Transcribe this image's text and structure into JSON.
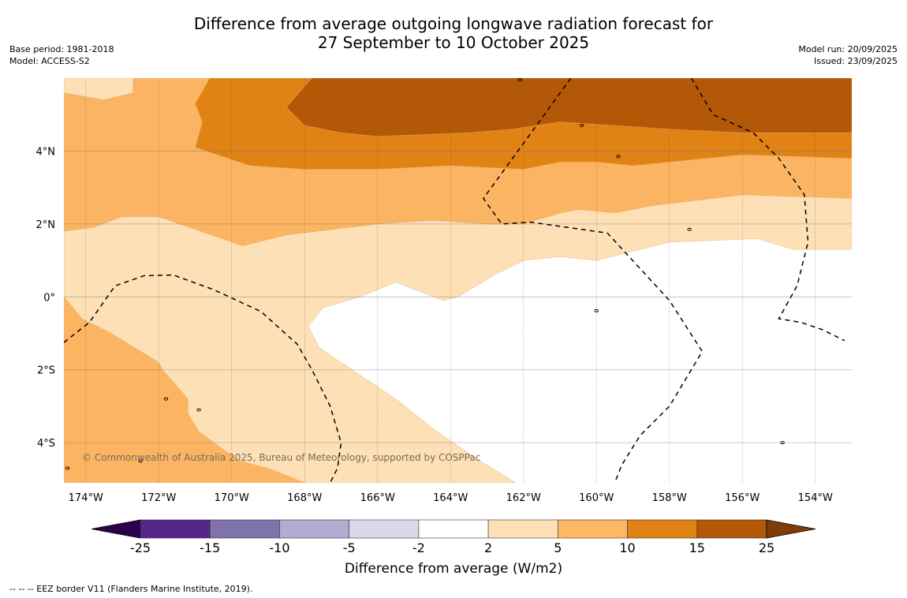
{
  "header": {
    "title_line1": "Difference from average outgoing longwave radiation forecast for",
    "title_line2": "27 September to 10 October 2025",
    "base_period": "Base period: 1981-2018",
    "model": "Model: ACCESS-S2",
    "model_run": "Model run: 20/09/2025",
    "issued": "Issued: 23/09/2025"
  },
  "map": {
    "extent": {
      "lon_min": -174.6,
      "lon_max": -153.0,
      "lat_min": -5.1,
      "lat_max": 6.0
    },
    "lon_ticks": [
      {
        "value": -174,
        "label": "174°W"
      },
      {
        "value": -172,
        "label": "172°W"
      },
      {
        "value": -170,
        "label": "170°W"
      },
      {
        "value": -168,
        "label": "168°W"
      },
      {
        "value": -166,
        "label": "166°W"
      },
      {
        "value": -164,
        "label": "164°W"
      },
      {
        "value": -162,
        "label": "162°W"
      },
      {
        "value": -160,
        "label": "160°W"
      },
      {
        "value": -158,
        "label": "158°W"
      },
      {
        "value": -156,
        "label": "156°W"
      },
      {
        "value": -154,
        "label": "154°W"
      }
    ],
    "lat_ticks": [
      {
        "value": 4,
        "label": "4°N"
      },
      {
        "value": 2,
        "label": "2°N"
      },
      {
        "value": 0,
        "label": "0°"
      },
      {
        "value": -2,
        "label": "2°S"
      },
      {
        "value": -4,
        "label": "4°S"
      }
    ],
    "background_color": "#ffffff",
    "contour_fills": [
      {
        "band": "2 to 5",
        "color": "#fde0b6",
        "polygons": [
          [
            [
              -174.6,
              6.0
            ],
            [
              -172.7,
              6.0
            ],
            [
              -172.7,
              5.6
            ],
            [
              -173.5,
              5.4
            ],
            [
              -174.6,
              5.6
            ]
          ],
          [
            [
              -174.6,
              1.8
            ],
            [
              -173.8,
              1.9
            ],
            [
              -173.0,
              2.2
            ],
            [
              -172.0,
              2.2
            ],
            [
              -169.7,
              1.4
            ],
            [
              -168.5,
              1.7
            ],
            [
              -166.0,
              2.0
            ],
            [
              -164.5,
              2.1
            ],
            [
              -163.0,
              2.0
            ],
            [
              -162.0,
              2.0
            ],
            [
              -161.0,
              2.3
            ],
            [
              -160.5,
              2.4
            ],
            [
              -159.5,
              2.3
            ],
            [
              -158.5,
              2.5
            ],
            [
              -156.0,
              2.8
            ],
            [
              -153.0,
              2.7
            ],
            [
              -153.0,
              1.3
            ],
            [
              -154.6,
              1.3
            ],
            [
              -155.6,
              1.6
            ],
            [
              -158.0,
              1.5
            ],
            [
              -160.0,
              1.0
            ],
            [
              -161.0,
              1.1
            ],
            [
              -162.0,
              1.0
            ],
            [
              -162.8,
              0.6
            ],
            [
              -163.8,
              0.0
            ],
            [
              -164.2,
              -0.1
            ],
            [
              -165.5,
              0.4
            ],
            [
              -166.5,
              0.0
            ],
            [
              -167.5,
              -0.3
            ],
            [
              -167.9,
              -0.8
            ],
            [
              -167.6,
              -1.4
            ],
            [
              -167.0,
              -1.8
            ],
            [
              -165.5,
              -2.8
            ],
            [
              -164.5,
              -3.6
            ],
            [
              -163.2,
              -4.5
            ],
            [
              -162.2,
              -5.1
            ],
            [
              -168.0,
              -5.1
            ],
            [
              -169.0,
              -4.7
            ],
            [
              -169.8,
              -4.5
            ],
            [
              -170.9,
              -3.7
            ],
            [
              -171.2,
              -3.2
            ],
            [
              -171.2,
              -2.8
            ],
            [
              -171.9,
              -2.0
            ],
            [
              -172.0,
              -1.8
            ],
            [
              -173.3,
              -1.0
            ],
            [
              -174.1,
              -0.6
            ],
            [
              -174.6,
              0.0
            ]
          ]
        ]
      },
      {
        "band": "5 to 10",
        "color": "#fbb462",
        "polygons": [
          [
            [
              -172.7,
              6.0
            ],
            [
              -170.6,
              6.0
            ],
            [
              -171.0,
              5.3
            ],
            [
              -170.8,
              4.8
            ],
            [
              -171.0,
              4.1
            ],
            [
              -169.5,
              3.6
            ],
            [
              -168.0,
              3.5
            ],
            [
              -166.0,
              3.5
            ],
            [
              -164.0,
              3.6
            ],
            [
              -162.0,
              3.5
            ],
            [
              -161.0,
              3.7
            ],
            [
              -160.0,
              3.7
            ],
            [
              -159.0,
              3.6
            ],
            [
              -156.0,
              3.9
            ],
            [
              -153.0,
              3.8
            ],
            [
              -153.0,
              2.7
            ],
            [
              -156.0,
              2.8
            ],
            [
              -158.5,
              2.5
            ],
            [
              -159.5,
              2.3
            ],
            [
              -160.5,
              2.4
            ],
            [
              -161.0,
              2.3
            ],
            [
              -162.0,
              2.0
            ],
            [
              -163.0,
              2.0
            ],
            [
              -164.5,
              2.1
            ],
            [
              -166.0,
              2.0
            ],
            [
              -168.5,
              1.7
            ],
            [
              -169.7,
              1.4
            ],
            [
              -172.0,
              2.2
            ],
            [
              -173.0,
              2.2
            ],
            [
              -173.8,
              1.9
            ],
            [
              -174.6,
              1.8
            ],
            [
              -174.6,
              5.6
            ],
            [
              -173.5,
              5.4
            ],
            [
              -172.7,
              5.6
            ]
          ],
          [
            [
              -174.6,
              0.0
            ],
            [
              -174.1,
              -0.6
            ],
            [
              -173.3,
              -1.0
            ],
            [
              -172.0,
              -1.8
            ],
            [
              -171.9,
              -2.0
            ],
            [
              -171.2,
              -2.8
            ],
            [
              -171.2,
              -3.2
            ],
            [
              -170.9,
              -3.7
            ],
            [
              -169.8,
              -4.5
            ],
            [
              -169.0,
              -4.7
            ],
            [
              -168.0,
              -5.1
            ],
            [
              -174.6,
              -5.1
            ]
          ]
        ]
      },
      {
        "band": "10 to 15",
        "color": "#e08214",
        "polygons": [
          [
            [
              -170.6,
              6.0
            ],
            [
              -167.8,
              6.0
            ],
            [
              -168.5,
              5.2
            ],
            [
              -168.0,
              4.7
            ],
            [
              -167.0,
              4.5
            ],
            [
              -166.0,
              4.4
            ],
            [
              -163.5,
              4.5
            ],
            [
              -162.3,
              4.6
            ],
            [
              -161.0,
              4.8
            ],
            [
              -159.5,
              4.7
            ],
            [
              -158.0,
              4.6
            ],
            [
              -156.0,
              4.5
            ],
            [
              -153.0,
              4.5
            ],
            [
              -153.0,
              3.8
            ],
            [
              -156.0,
              3.9
            ],
            [
              -159.0,
              3.6
            ],
            [
              -160.0,
              3.7
            ],
            [
              -161.0,
              3.7
            ],
            [
              -162.0,
              3.5
            ],
            [
              -164.0,
              3.6
            ],
            [
              -166.0,
              3.5
            ],
            [
              -168.0,
              3.5
            ],
            [
              -169.5,
              3.6
            ],
            [
              -171.0,
              4.1
            ],
            [
              -170.8,
              4.8
            ],
            [
              -171.0,
              5.3
            ]
          ]
        ]
      },
      {
        "band": "15 to 25",
        "color": "#b35806",
        "polygons": [
          [
            [
              -167.8,
              6.0
            ],
            [
              -153.0,
              6.0
            ],
            [
              -153.0,
              4.5
            ],
            [
              -156.0,
              4.5
            ],
            [
              -158.0,
              4.6
            ],
            [
              -159.5,
              4.7
            ],
            [
              -161.0,
              4.8
            ],
            [
              -162.3,
              4.6
            ],
            [
              -163.5,
              4.5
            ],
            [
              -166.0,
              4.4
            ],
            [
              -167.0,
              4.5
            ],
            [
              -168.0,
              4.7
            ],
            [
              -168.5,
              5.2
            ]
          ]
        ]
      }
    ],
    "eez_borders": [
      [
        [
          -174.6,
          -1.25
        ],
        [
          -173.9,
          -0.7
        ],
        [
          -173.2,
          0.3
        ],
        [
          -172.4,
          0.58
        ],
        [
          -171.6,
          0.6
        ],
        [
          -170.5,
          0.2
        ],
        [
          -169.2,
          -0.4
        ],
        [
          -168.2,
          -1.3
        ],
        [
          -167.8,
          -2.0
        ],
        [
          -167.3,
          -3.0
        ],
        [
          -167.0,
          -4.0
        ],
        [
          -167.1,
          -4.7
        ],
        [
          -167.3,
          -5.1
        ]
      ],
      [
        [
          -160.7,
          6.0
        ],
        [
          -163.1,
          2.7
        ],
        [
          -162.6,
          2.0
        ],
        [
          -161.8,
          2.05
        ],
        [
          -159.7,
          1.75
        ],
        [
          -158.0,
          -0.1
        ],
        [
          -157.1,
          -1.5
        ],
        [
          -158.0,
          -3.0
        ],
        [
          -158.8,
          -3.8
        ],
        [
          -159.3,
          -4.6
        ],
        [
          -159.5,
          -5.1
        ]
      ],
      [
        [
          -157.4,
          6.0
        ],
        [
          -156.8,
          5.0
        ],
        [
          -155.7,
          4.5
        ],
        [
          -155.0,
          3.8
        ],
        [
          -154.3,
          2.8
        ],
        [
          -154.2,
          1.5
        ],
        [
          -154.5,
          0.3
        ],
        [
          -155.0,
          -0.6
        ],
        [
          -154.4,
          -0.7
        ],
        [
          -153.8,
          -0.9
        ],
        [
          -153.2,
          -1.2
        ]
      ]
    ],
    "islands": [
      {
        "lon": -162.1,
        "lat": 5.96
      },
      {
        "lon": -160.4,
        "lat": 4.7
      },
      {
        "lon": -159.4,
        "lat": 3.85
      },
      {
        "lon": -157.45,
        "lat": 1.85
      },
      {
        "lon": -160.0,
        "lat": -0.38
      },
      {
        "lon": -154.9,
        "lat": -4.0
      },
      {
        "lon": -171.8,
        "lat": -2.8
      },
      {
        "lon": -170.9,
        "lat": -3.1
      },
      {
        "lon": -172.5,
        "lat": -4.5
      },
      {
        "lon": -174.5,
        "lat": -4.7
      }
    ],
    "copyright": "© Commonwealth of Australia 2025, Bureau of Meteorology, supported by COSPPac"
  },
  "colorbar": {
    "title": "Difference from average (W/m2)",
    "boundaries": [
      "-25",
      "-15",
      "-10",
      "-5",
      "-2",
      "2",
      "5",
      "10",
      "15",
      "25"
    ],
    "colors": [
      "#542788",
      "#8073ac",
      "#b2abd2",
      "#d8daeb",
      "#ffffff",
      "#fee0b6",
      "#fdb863",
      "#e08214",
      "#b35806"
    ],
    "extend_min_color": "#2d004b",
    "extend_max_color": "#7f3b08"
  },
  "footer": {
    "legend_text": "--  --  -- EEZ border V11 (Flanders Marine Institute, 2019)."
  }
}
